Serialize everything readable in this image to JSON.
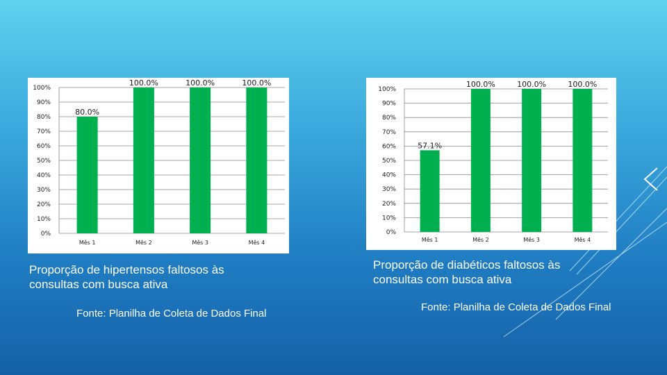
{
  "charts": [
    {
      "chart_data": {
        "type": "bar",
        "categories": [
          "Mês 1",
          "Mês 2",
          "Mês 3",
          "Mês 4"
        ],
        "values": [
          80.0,
          100.0,
          100.0,
          100.0
        ],
        "data_labels": [
          "80.0%",
          "100.0%",
          "100.0%",
          "100.0%"
        ],
        "ylim": [
          0,
          100
        ],
        "yticks": [
          "0%",
          "10%",
          "20%",
          "30%",
          "40%",
          "50%",
          "60%",
          "70%",
          "80%",
          "90%",
          "100%"
        ],
        "grid": true,
        "bar_color": "#00b04f",
        "title": "",
        "xlabel": "",
        "ylabel": ""
      },
      "caption": "Proporção de hipertensos faltosos às consultas com busca ativa",
      "source": "Fonte: Planilha de Coleta de Dados Final"
    },
    {
      "chart_data": {
        "type": "bar",
        "categories": [
          "Mês 1",
          "Mês 2",
          "Mês 3",
          "Mês 4"
        ],
        "values": [
          57.1,
          100.0,
          100.0,
          100.0
        ],
        "data_labels": [
          "57.1%",
          "100.0%",
          "100.0%",
          "100.0%"
        ],
        "ylim": [
          0,
          100
        ],
        "yticks": [
          "0%",
          "10%",
          "20%",
          "30%",
          "40%",
          "50%",
          "60%",
          "70%",
          "80%",
          "90%",
          "100%"
        ],
        "grid": true,
        "bar_color": "#00b04f",
        "title": "",
        "xlabel": "",
        "ylabel": ""
      },
      "caption": "Proporção de diabéticos faltosos às consultas com busca ativa",
      "source": "Fonte: Planilha de Coleta de Dados Final"
    }
  ]
}
